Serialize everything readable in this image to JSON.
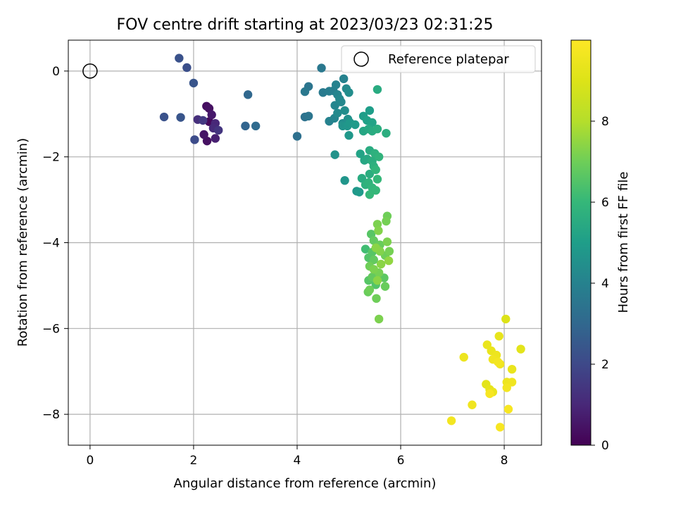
{
  "chart_data": {
    "type": "scatter",
    "title": "FOV centre drift starting at 2023/03/23 02:31:25",
    "xlabel": "Angular distance from reference (arcmin)",
    "ylabel": "Rotation from reference (arcmin)",
    "xlim": [
      -0.42,
      8.72
    ],
    "ylim": [
      -8.72,
      0.72
    ],
    "xticks": [
      0,
      2,
      4,
      6,
      8
    ],
    "yticks": [
      0,
      -2,
      -4,
      -6,
      -8
    ],
    "grid": true,
    "legend": {
      "location": "top-right",
      "entries": [
        "Reference platepar"
      ]
    },
    "colorbar": {
      "label": "Hours from first FF file",
      "range": [
        0,
        10
      ],
      "ticks": [
        0,
        2,
        4,
        6,
        8
      ],
      "colormap": "viridis"
    },
    "reference": {
      "x": 0,
      "y": 0
    },
    "points": [
      [
        1.72,
        0.3,
        2.3
      ],
      [
        1.87,
        0.08,
        2.2
      ],
      [
        2.0,
        -0.28,
        2.4
      ],
      [
        1.43,
        -1.07,
        2.3
      ],
      [
        1.75,
        -1.08,
        2.4
      ],
      [
        2.08,
        -1.13,
        1.2
      ],
      [
        2.18,
        -1.15,
        1.5
      ],
      [
        2.25,
        -0.82,
        0.3
      ],
      [
        2.3,
        -0.87,
        0.4
      ],
      [
        2.35,
        -1.02,
        0.6
      ],
      [
        2.42,
        -1.22,
        1.0
      ],
      [
        2.38,
        -1.33,
        1.1
      ],
      [
        2.2,
        -1.48,
        0.5
      ],
      [
        2.26,
        -1.63,
        0.4
      ],
      [
        2.42,
        -1.57,
        0.8
      ],
      [
        2.48,
        -1.38,
        1.4
      ],
      [
        2.02,
        -1.6,
        2.1
      ],
      [
        2.3,
        -1.18,
        0.2
      ],
      [
        3.05,
        -0.55,
        3.0
      ],
      [
        3.0,
        -1.28,
        2.9
      ],
      [
        3.2,
        -1.28,
        3.1
      ],
      [
        4.0,
        -1.52,
        3.3
      ],
      [
        4.15,
        -1.07,
        3.4
      ],
      [
        4.22,
        -1.05,
        3.5
      ],
      [
        4.15,
        -0.48,
        3.6
      ],
      [
        4.22,
        -0.36,
        3.5
      ],
      [
        4.47,
        0.07,
        3.6
      ],
      [
        4.5,
        -0.5,
        3.7
      ],
      [
        4.62,
        -0.47,
        3.8
      ],
      [
        4.7,
        -0.46,
        3.9
      ],
      [
        4.75,
        -0.32,
        4.0
      ],
      [
        4.78,
        -0.55,
        4.1
      ],
      [
        4.82,
        -0.65,
        4.2
      ],
      [
        4.9,
        -0.18,
        4.0
      ],
      [
        4.95,
        -0.41,
        4.3
      ],
      [
        5.0,
        -0.5,
        4.4
      ],
      [
        4.73,
        -0.8,
        4.1
      ],
      [
        4.85,
        -0.72,
        4.2
      ],
      [
        4.78,
        -0.98,
        4.3
      ],
      [
        4.92,
        -0.92,
        4.4
      ],
      [
        4.62,
        -1.17,
        4.0
      ],
      [
        4.72,
        -1.1,
        4.1
      ],
      [
        4.88,
        -1.22,
        4.4
      ],
      [
        4.98,
        -1.12,
        4.5
      ],
      [
        4.88,
        -1.28,
        4.6
      ],
      [
        4.97,
        -1.28,
        4.7
      ],
      [
        5.0,
        -1.5,
        4.8
      ],
      [
        5.02,
        -1.2,
        4.8
      ],
      [
        5.12,
        -1.25,
        4.9
      ],
      [
        5.28,
        -1.05,
        5.0
      ],
      [
        5.35,
        -1.15,
        5.1
      ],
      [
        5.4,
        -0.92,
        5.0
      ],
      [
        5.45,
        -1.2,
        5.2
      ],
      [
        5.28,
        -1.4,
        5.3
      ],
      [
        5.38,
        -1.35,
        5.4
      ],
      [
        5.45,
        -1.4,
        5.5
      ],
      [
        5.55,
        -1.35,
        5.6
      ],
      [
        5.55,
        -0.43,
        5.5
      ],
      [
        5.72,
        -1.45,
        5.6
      ],
      [
        4.73,
        -1.95,
        4.6
      ],
      [
        4.92,
        -2.55,
        4.7
      ],
      [
        5.15,
        -2.8,
        4.8
      ],
      [
        5.2,
        -2.82,
        4.9
      ],
      [
        5.22,
        -1.93,
        5.2
      ],
      [
        5.3,
        -2.08,
        5.3
      ],
      [
        5.35,
        -2.05,
        5.4
      ],
      [
        5.4,
        -1.85,
        5.5
      ],
      [
        5.45,
        -2.1,
        5.6
      ],
      [
        5.5,
        -1.92,
        5.7
      ],
      [
        5.58,
        -2.0,
        5.8
      ],
      [
        5.48,
        -2.22,
        5.7
      ],
      [
        5.25,
        -2.5,
        5.5
      ],
      [
        5.4,
        -2.4,
        5.6
      ],
      [
        5.52,
        -2.3,
        5.9
      ],
      [
        5.38,
        -2.6,
        5.8
      ],
      [
        5.45,
        -2.72,
        5.9
      ],
      [
        5.52,
        -2.78,
        6.0
      ],
      [
        5.4,
        -2.88,
        6.0
      ],
      [
        5.32,
        -2.65,
        5.7
      ],
      [
        5.55,
        -2.52,
        6.0
      ],
      [
        5.74,
        -3.38,
        7.0
      ],
      [
        5.72,
        -3.5,
        7.1
      ],
      [
        5.55,
        -3.57,
        7.2
      ],
      [
        5.57,
        -3.72,
        7.3
      ],
      [
        5.43,
        -3.8,
        6.6
      ],
      [
        5.48,
        -3.95,
        6.8
      ],
      [
        5.74,
        -3.98,
        7.2
      ],
      [
        5.6,
        -4.05,
        6.9
      ],
      [
        5.52,
        -4.12,
        7.4
      ],
      [
        5.32,
        -4.15,
        6.2
      ],
      [
        5.45,
        -4.22,
        6.6
      ],
      [
        5.6,
        -4.2,
        7.3
      ],
      [
        5.7,
        -4.3,
        7.0
      ],
      [
        5.78,
        -4.2,
        7.1
      ],
      [
        5.38,
        -4.35,
        6.5
      ],
      [
        5.48,
        -4.4,
        6.8
      ],
      [
        5.62,
        -4.5,
        7.4
      ],
      [
        5.77,
        -4.42,
        7.5
      ],
      [
        5.4,
        -4.55,
        7.0
      ],
      [
        5.48,
        -4.62,
        7.2
      ],
      [
        5.58,
        -4.7,
        7.1
      ],
      [
        5.45,
        -4.8,
        6.8
      ],
      [
        5.68,
        -4.82,
        6.7
      ],
      [
        5.38,
        -4.88,
        6.6
      ],
      [
        5.52,
        -4.98,
        6.5
      ],
      [
        5.7,
        -5.02,
        6.9
      ],
      [
        5.4,
        -5.1,
        7.0
      ],
      [
        5.37,
        -5.15,
        6.9
      ],
      [
        5.55,
        -4.88,
        7.4
      ],
      [
        5.53,
        -5.3,
        7.0
      ],
      [
        5.58,
        -5.78,
        7.2
      ],
      [
        8.03,
        -5.78,
        9.0
      ],
      [
        7.9,
        -6.18,
        9.3
      ],
      [
        7.67,
        -6.38,
        9.4
      ],
      [
        7.75,
        -6.52,
        9.4
      ],
      [
        7.85,
        -6.62,
        9.5
      ],
      [
        7.78,
        -6.72,
        9.6
      ],
      [
        7.88,
        -6.78,
        9.7
      ],
      [
        7.92,
        -6.83,
        9.6
      ],
      [
        7.22,
        -6.67,
        9.5
      ],
      [
        8.32,
        -6.48,
        9.2
      ],
      [
        8.15,
        -6.95,
        9.4
      ],
      [
        7.65,
        -7.3,
        9.2
      ],
      [
        7.72,
        -7.42,
        9.3
      ],
      [
        7.78,
        -7.48,
        9.4
      ],
      [
        8.05,
        -7.25,
        9.5
      ],
      [
        8.15,
        -7.25,
        9.6
      ],
      [
        8.05,
        -7.38,
        9.7
      ],
      [
        7.72,
        -7.52,
        9.8
      ],
      [
        7.38,
        -7.78,
        9.6
      ],
      [
        8.08,
        -7.88,
        9.8
      ],
      [
        6.98,
        -8.15,
        9.7
      ],
      [
        7.92,
        -8.3,
        9.8
      ]
    ]
  }
}
